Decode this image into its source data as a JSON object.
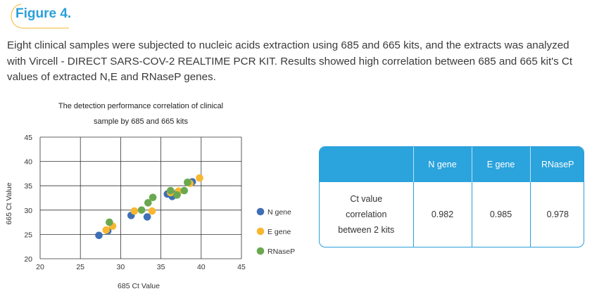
{
  "figure": {
    "label": "Figure 4."
  },
  "caption": "Eight clinical samples were subjected to nucleic acids extraction using 685 and 665 kits, and the extracts was analyzed with Vircell - DIRECT SARS-COV-2 REALTIME PCR KIT. Results showed high correlation between 685 and 665 kit's Ct values of extracted N,E and RNaseP genes.",
  "colors": {
    "accent": "#2aa0d8",
    "n_gene": "#3f6fb6",
    "e_gene": "#f7b731",
    "rnasep": "#6aa84f"
  },
  "chart_data": {
    "type": "scatter",
    "title": "The detection performance correlation of clinical sample by 685 and 665 kits",
    "title_lines": [
      "The detection performance correlation of clinical",
      "sample by 685 and 665 kits"
    ],
    "xlabel": "685 Ct Value",
    "ylabel": "665 Ct Value",
    "xlim": [
      20,
      45
    ],
    "ylim": [
      20,
      45
    ],
    "xticks": [
      20,
      25,
      30,
      35,
      40,
      45
    ],
    "yticks": [
      20,
      25,
      30,
      35,
      40,
      45
    ],
    "grid": true,
    "legend_position": "right",
    "series": [
      {
        "name": "N gene",
        "color": "#3f6fb6",
        "points": [
          [
            27.3,
            24.8
          ],
          [
            28.4,
            25.7
          ],
          [
            31.3,
            28.9
          ],
          [
            33.3,
            28.6
          ],
          [
            35.8,
            33.3
          ],
          [
            36.4,
            32.8
          ],
          [
            37.1,
            33.7
          ],
          [
            38.9,
            35.8
          ]
        ]
      },
      {
        "name": "E gene",
        "color": "#f7b731",
        "points": [
          [
            28.2,
            25.9
          ],
          [
            29.0,
            26.7
          ],
          [
            31.7,
            29.8
          ],
          [
            33.9,
            29.8
          ],
          [
            36.2,
            33.6
          ],
          [
            37.2,
            33.9
          ],
          [
            38.6,
            35.5
          ],
          [
            39.8,
            36.6
          ]
        ]
      },
      {
        "name": "RNaseP",
        "color": "#6aa84f",
        "points": [
          [
            28.6,
            27.5
          ],
          [
            32.6,
            30.0
          ],
          [
            33.4,
            31.5
          ],
          [
            34.0,
            32.6
          ],
          [
            36.2,
            34.0
          ],
          [
            37.0,
            33.1
          ],
          [
            37.9,
            34.0
          ],
          [
            38.3,
            35.7
          ]
        ]
      }
    ]
  },
  "table": {
    "headers": [
      "",
      "N gene",
      "E gene",
      "RNaseP"
    ],
    "row_label_lines": [
      "Ct value",
      "correlation",
      "between 2 kits"
    ],
    "values": [
      "0.982",
      "0.985",
      "0.978"
    ]
  }
}
